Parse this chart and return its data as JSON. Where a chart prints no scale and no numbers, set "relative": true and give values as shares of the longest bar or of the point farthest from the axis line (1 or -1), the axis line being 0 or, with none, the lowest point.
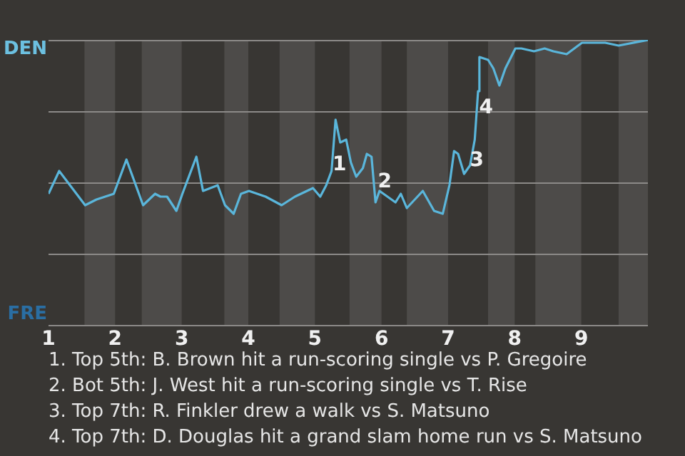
{
  "chart_data": {
    "type": "line",
    "x": [
      1.0,
      1.16,
      1.55,
      1.72,
      1.98,
      2.17,
      2.42,
      2.6,
      2.68,
      2.78,
      2.92,
      3.01,
      3.22,
      3.32,
      3.54,
      3.65,
      3.78,
      3.89,
      4.01,
      4.26,
      4.5,
      4.7,
      4.97,
      5.08,
      5.17,
      5.25,
      5.31,
      5.38,
      5.47,
      5.54,
      5.62,
      5.72,
      5.78,
      5.85,
      5.91,
      5.97,
      6.21,
      6.29,
      6.38,
      6.62,
      6.79,
      6.92,
      7.02,
      7.09,
      7.15,
      7.24,
      7.33,
      7.4,
      7.45,
      7.47,
      7.6,
      7.68,
      7.77,
      7.86,
      8.01,
      8.1,
      8.29,
      8.45,
      8.58,
      8.78,
      9.01,
      9.36,
      9.56,
      10
    ],
    "relative": true,
    "series": [
      {
        "color": "#5ab6db",
        "values": [
          0.46,
          0.54,
          0.42,
          0.44,
          0.46,
          0.58,
          0.42,
          0.46,
          0.45,
          0.45,
          0.4,
          0.46,
          0.59,
          0.47,
          0.49,
          0.42,
          0.39,
          0.46,
          0.47,
          0.45,
          0.42,
          0.45,
          0.48,
          0.45,
          0.49,
          0.54,
          0.72,
          0.64,
          0.65,
          0.57,
          0.52,
          0.55,
          0.6,
          0.59,
          0.43,
          0.47,
          0.43,
          0.46,
          0.41,
          0.47,
          0.4,
          0.39,
          0.49,
          0.61,
          0.6,
          0.53,
          0.56,
          0.65,
          0.82,
          0.94,
          0.93,
          0.9,
          0.84,
          0.9,
          0.97,
          0.97,
          0.96,
          0.97,
          0.96,
          0.95,
          0.99,
          0.99,
          0.98,
          1
        ]
      }
    ],
    "xlim": [
      1,
      10
    ],
    "xticks": [
      1,
      2,
      3,
      4,
      5,
      6,
      7,
      8,
      9
    ],
    "grid": "y",
    "marker": "none",
    "bands": [
      {
        "axis": "x",
        "from": 1.54,
        "to": 2,
        "color": "#4d4b49"
      },
      {
        "axis": "x",
        "from": 2.4,
        "to": 3,
        "color": "#4d4b49"
      },
      {
        "axis": "x",
        "from": 3.64,
        "to": 4,
        "color": "#4d4b49"
      },
      {
        "axis": "x",
        "from": 4.47,
        "to": 5,
        "color": "#4d4b49"
      },
      {
        "axis": "x",
        "from": 5.52,
        "to": 6,
        "color": "#4d4b49"
      },
      {
        "axis": "x",
        "from": 6.38,
        "to": 7,
        "color": "#4d4b49"
      },
      {
        "axis": "x",
        "from": 7.6,
        "to": 8,
        "color": "#4d4b49"
      },
      {
        "axis": "x",
        "from": 8.31,
        "to": 9,
        "color": "#4d4b49"
      },
      {
        "axis": "x",
        "from": 9.56,
        "to": 10,
        "color": "#4d4b49"
      }
    ],
    "annotations": [
      "DEN",
      "FRE",
      {
        "text": "1",
        "x": 5.37,
        "y": 0.56
      },
      {
        "text": "2",
        "x": 6.05,
        "y": 0.5
      },
      {
        "text": "3",
        "x": 7.43,
        "y": 0.575
      },
      {
        "text": "4",
        "x": 7.57,
        "y": 0.76
      },
      "1. Top 5th: B. Brown hit a run-scoring single vs P. Gregoire",
      "2. Bot 5th: J. West hit a run-scoring single vs T. Rise",
      "3. Top 7th: R. Finkler drew a walk vs S. Matsuno",
      "4. Top 7th: D. Douglas hit a grand slam home run vs S. Matsuno"
    ]
  }
}
